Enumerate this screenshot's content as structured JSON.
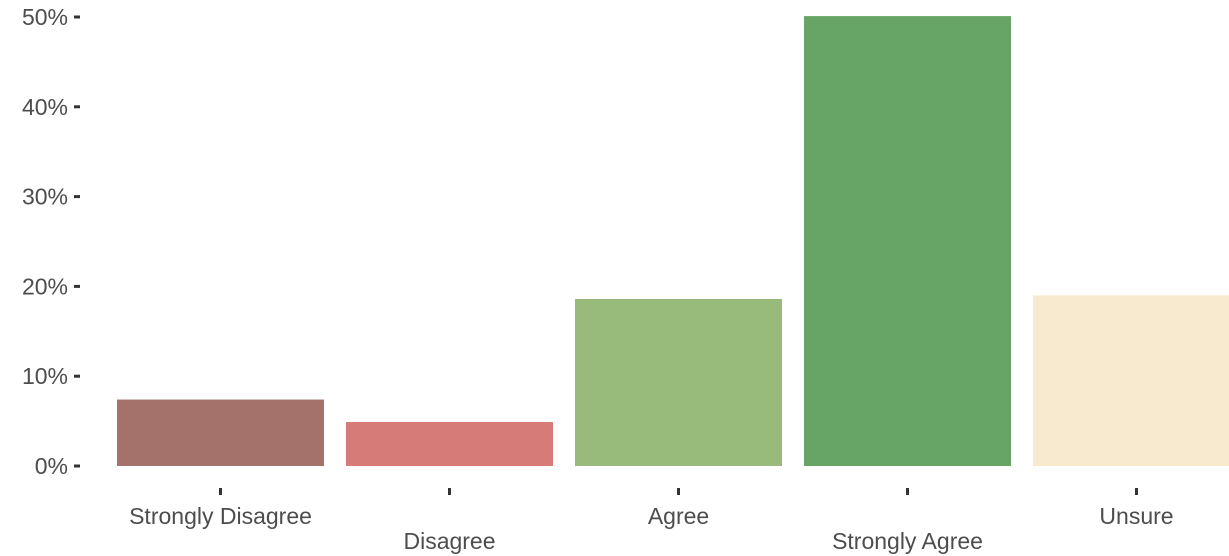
{
  "chart_data": {
    "type": "bar",
    "categories": [
      "Strongly Disagree",
      "Disagree",
      "Agree",
      "Strongly Agree",
      "Unsure"
    ],
    "values": [
      7.4,
      4.9,
      18.6,
      50.1,
      19.0
    ],
    "colors": [
      "#a5716b",
      "#d77b78",
      "#98ba7a",
      "#66a566",
      "#f8eacf"
    ],
    "ylim": [
      0,
      50
    ],
    "yticks": [
      0,
      10,
      20,
      30,
      40,
      50
    ],
    "ytick_labels": [
      "0%",
      "10%",
      "20%",
      "30%",
      "40%",
      "50%"
    ],
    "grid": false,
    "legend": "none",
    "x_labels_staggered": true
  }
}
